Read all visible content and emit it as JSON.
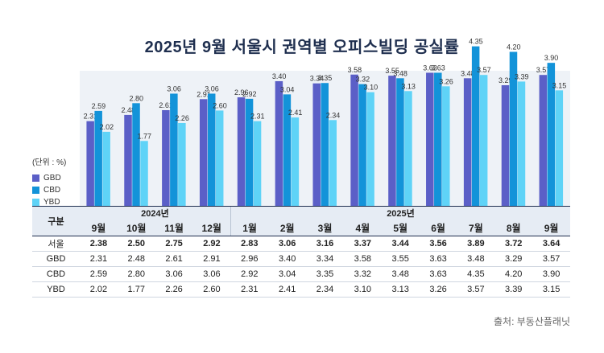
{
  "chart_data": {
    "type": "bar",
    "title": "2025년 9월 서울시 권역별 오피스빌딩 공실률",
    "unit_label": "(단위 : %)",
    "ylim": [
      0,
      5
    ],
    "categories": [
      "9월",
      "10월",
      "11월",
      "12월",
      "1월",
      "2월",
      "3월",
      "4월",
      "5월",
      "6월",
      "7월",
      "8월",
      "9월"
    ],
    "years": [
      {
        "label": "2024년",
        "span": 4
      },
      {
        "label": "2025년",
        "span": 9
      }
    ],
    "series": [
      {
        "name": "GBD",
        "color": "#5b5fc7",
        "values": [
          2.31,
          2.48,
          2.61,
          2.91,
          2.96,
          3.4,
          3.34,
          3.58,
          3.55,
          3.63,
          3.48,
          3.29,
          3.57
        ]
      },
      {
        "name": "CBD",
        "color": "#1393d9",
        "values": [
          2.59,
          2.8,
          3.06,
          3.06,
          2.92,
          3.04,
          3.35,
          3.32,
          3.48,
          3.63,
          4.35,
          4.2,
          3.9
        ]
      },
      {
        "name": "YBD",
        "color": "#5fd3f7",
        "values": [
          2.02,
          1.77,
          2.26,
          2.6,
          2.31,
          2.41,
          2.34,
          3.1,
          3.13,
          3.26,
          3.57,
          3.39,
          3.15
        ]
      }
    ],
    "table": {
      "header_label": "구분",
      "rows": [
        {
          "name": "서울",
          "bold": true,
          "values": [
            "2.38",
            "2.50",
            "2.75",
            "2.92",
            "2.83",
            "3.06",
            "3.16",
            "3.37",
            "3.44",
            "3.56",
            "3.89",
            "3.72",
            "3.64"
          ]
        },
        {
          "name": "GBD",
          "bold": false,
          "values": [
            "2.31",
            "2.48",
            "2.61",
            "2.91",
            "2.96",
            "3.40",
            "3.34",
            "3.58",
            "3.55",
            "3.63",
            "3.48",
            "3.29",
            "3.57"
          ]
        },
        {
          "name": "CBD",
          "bold": false,
          "values": [
            "2.59",
            "2.80",
            "3.06",
            "3.06",
            "2.92",
            "3.04",
            "3.35",
            "3.32",
            "3.48",
            "3.63",
            "4.35",
            "4.20",
            "3.90"
          ]
        },
        {
          "name": "YBD",
          "bold": false,
          "values": [
            "2.02",
            "1.77",
            "2.26",
            "2.60",
            "2.31",
            "2.41",
            "2.34",
            "3.10",
            "3.13",
            "3.26",
            "3.57",
            "3.39",
            "3.15"
          ]
        }
      ]
    },
    "source": "출처: 부동산플래닛"
  }
}
